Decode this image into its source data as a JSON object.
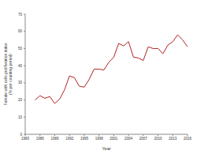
{
  "chart_data": {
    "type": "line",
    "x_label": "Year",
    "y_label": "Female with cells proliferation index (% per counting period)",
    "x": [
      1985,
      1986,
      1987,
      1988,
      1989,
      1990,
      1991,
      1992,
      1993,
      1994,
      1995,
      1996,
      1997,
      1998,
      1999,
      2000,
      2001,
      2002,
      2003,
      2004,
      2005,
      2006,
      2007,
      2008,
      2009,
      2010,
      2011,
      2012,
      2013,
      2014,
      2015,
      2016
    ],
    "values": [
      20,
      22.5,
      21,
      22,
      18,
      20.5,
      26,
      34,
      33,
      28,
      27.5,
      32,
      38,
      38,
      37.5,
      42,
      45,
      53,
      51.5,
      54,
      45,
      44.5,
      43,
      51,
      50,
      50,
      47,
      52,
      54,
      58,
      55,
      51
    ],
    "color": "#b22222",
    "xlim": [
      1983,
      2016
    ],
    "xticks": [
      1983,
      1986,
      1989,
      1992,
      1995,
      1998,
      2001,
      2004,
      2007,
      2010,
      2013,
      2016
    ],
    "ylim": [
      0,
      70
    ],
    "yticks": [
      0,
      10,
      20,
      30,
      40,
      50,
      60,
      70
    ],
    "grid": false
  }
}
